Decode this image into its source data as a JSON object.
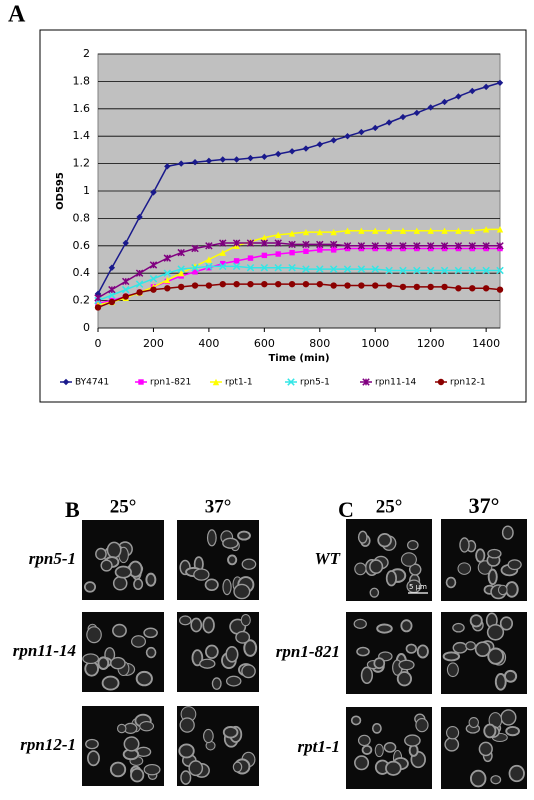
{
  "chart_data": {
    "type": "line",
    "panel_label": "A",
    "x_label": "Time (min)",
    "y_label": "OD595",
    "x": [
      0,
      50,
      100,
      150,
      200,
      250,
      300,
      350,
      400,
      450,
      500,
      550,
      600,
      650,
      700,
      750,
      800,
      850,
      900,
      950,
      1000,
      1050,
      1100,
      1150,
      1200,
      1250,
      1300,
      1350,
      1400,
      1450
    ],
    "xlim": [
      0,
      1450
    ],
    "ylim": [
      0,
      2
    ],
    "xticks": [
      0,
      200,
      400,
      600,
      800,
      1000,
      1200,
      1400
    ],
    "yticks": [
      0,
      0.2,
      0.4,
      0.6,
      0.8,
      1,
      1.2,
      1.4,
      1.6,
      1.8,
      2
    ],
    "grid": true,
    "legend": "bottom",
    "series": [
      {
        "name": "BY4741",
        "color": "#1a1a8c",
        "marker": "diamond",
        "values": [
          0.25,
          0.44,
          0.62,
          0.81,
          0.99,
          1.18,
          1.2,
          1.21,
          1.22,
          1.23,
          1.23,
          1.24,
          1.25,
          1.27,
          1.29,
          1.31,
          1.34,
          1.37,
          1.4,
          1.43,
          1.46,
          1.5,
          1.54,
          1.57,
          1.61,
          1.65,
          1.69,
          1.73,
          1.76,
          1.79
        ]
      },
      {
        "name": "rpn1-821",
        "color": "#ff00ff",
        "marker": "square",
        "values": [
          0.18,
          0.2,
          0.23,
          0.26,
          0.3,
          0.34,
          0.38,
          0.41,
          0.44,
          0.47,
          0.49,
          0.51,
          0.53,
          0.54,
          0.55,
          0.56,
          0.57,
          0.57,
          0.58,
          0.58,
          0.58,
          0.58,
          0.58,
          0.58,
          0.58,
          0.58,
          0.58,
          0.58,
          0.58,
          0.58
        ]
      },
      {
        "name": "rpt1-1",
        "color": "#ffff00",
        "marker": "triangle",
        "values": [
          0.17,
          0.19,
          0.22,
          0.26,
          0.3,
          0.35,
          0.4,
          0.45,
          0.5,
          0.55,
          0.6,
          0.63,
          0.66,
          0.68,
          0.69,
          0.7,
          0.7,
          0.7,
          0.71,
          0.71,
          0.71,
          0.71,
          0.71,
          0.71,
          0.71,
          0.71,
          0.71,
          0.71,
          0.72,
          0.72
        ]
      },
      {
        "name": "rpn5-1",
        "color": "#33e6e6",
        "marker": "x",
        "values": [
          0.2,
          0.24,
          0.28,
          0.32,
          0.36,
          0.4,
          0.43,
          0.44,
          0.45,
          0.45,
          0.45,
          0.44,
          0.44,
          0.44,
          0.44,
          0.43,
          0.43,
          0.43,
          0.43,
          0.43,
          0.43,
          0.42,
          0.42,
          0.42,
          0.42,
          0.42,
          0.42,
          0.42,
          0.42,
          0.42
        ]
      },
      {
        "name": "rpn11-14",
        "color": "#800080",
        "marker": "star",
        "values": [
          0.22,
          0.28,
          0.34,
          0.4,
          0.46,
          0.51,
          0.55,
          0.58,
          0.6,
          0.62,
          0.62,
          0.62,
          0.62,
          0.62,
          0.61,
          0.61,
          0.61,
          0.61,
          0.6,
          0.6,
          0.6,
          0.6,
          0.6,
          0.6,
          0.6,
          0.6,
          0.6,
          0.6,
          0.6,
          0.6
        ]
      },
      {
        "name": "rpn12-1",
        "color": "#8b0000",
        "marker": "circle",
        "values": [
          0.15,
          0.19,
          0.23,
          0.26,
          0.28,
          0.29,
          0.3,
          0.31,
          0.31,
          0.32,
          0.32,
          0.32,
          0.32,
          0.32,
          0.32,
          0.32,
          0.32,
          0.31,
          0.31,
          0.31,
          0.31,
          0.31,
          0.3,
          0.3,
          0.3,
          0.3,
          0.29,
          0.29,
          0.29,
          0.28
        ]
      }
    ]
  },
  "panels": [
    {
      "label": "B",
      "columns": [
        "25°",
        "37°"
      ],
      "rows": [
        "rpn5-1",
        "rpn11-14",
        "rpn12-1"
      ]
    },
    {
      "label": "C",
      "columns": [
        "25°",
        "37°"
      ],
      "rows": [
        "WT",
        "rpn1-821",
        "rpt1-1"
      ],
      "scale_bar": "5 µm"
    }
  ]
}
